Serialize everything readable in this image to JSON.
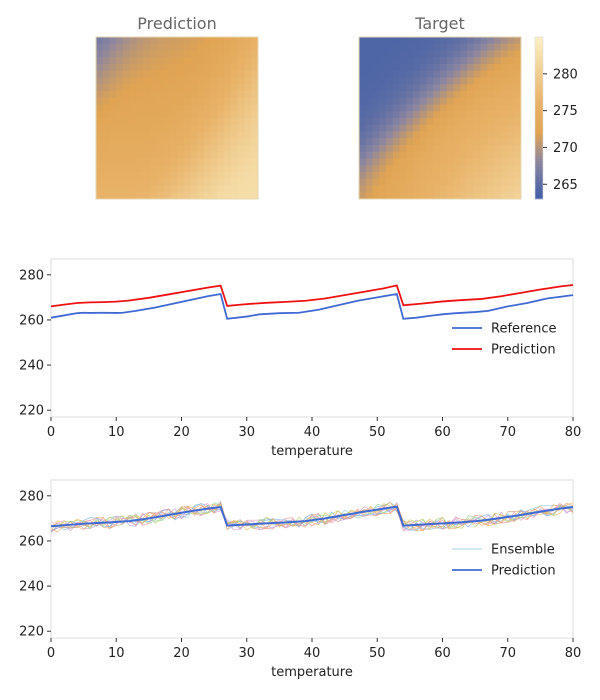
{
  "chart_data": [
    {
      "type": "heatmap",
      "title": "Prediction",
      "description_grid": "smooth field, low (~266) at top-left, high (~282) at bottom-right",
      "corner_values": {
        "top_left": 266,
        "top_right": 276,
        "bottom_left": 276,
        "bottom_right": 282
      },
      "colormap_stops": [
        {
          "value": 263,
          "color": "#3f5ea8"
        },
        {
          "value": 268,
          "color": "#8c86a0"
        },
        {
          "value": 272,
          "color": "#e0a453"
        },
        {
          "value": 276,
          "color": "#e8b268"
        },
        {
          "value": 285,
          "color": "#fbf0c4"
        }
      ]
    },
    {
      "type": "heatmap",
      "title": "Target",
      "corner_values": {
        "top_left": 263,
        "top_right": 271,
        "bottom_left": 271,
        "bottom_right": 281
      },
      "colorbar": {
        "range": [
          263,
          285
        ],
        "ticks": [
          265,
          270,
          275,
          280
        ]
      }
    },
    {
      "type": "line",
      "xlabel": "temperature",
      "ylabel": "",
      "xlim": [
        0,
        80
      ],
      "ylim": [
        217,
        287
      ],
      "xticks": [
        0,
        10,
        20,
        30,
        40,
        50,
        60,
        70,
        80
      ],
      "yticks": [
        220,
        240,
        260,
        280
      ],
      "legend_position": "center-right",
      "series": [
        {
          "name": "Reference",
          "color": "#4169d3",
          "x": [
            0,
            2,
            4,
            5,
            6,
            8,
            10,
            11,
            13,
            16,
            20,
            24,
            26,
            27,
            30,
            32,
            35,
            38,
            41,
            44,
            47,
            50,
            53,
            54,
            56,
            58,
            60,
            62,
            65,
            67,
            70,
            73,
            76,
            80
          ],
          "y": [
            261,
            262,
            263,
            263.2,
            263.1,
            263.2,
            263.1,
            263.2,
            264,
            265.5,
            268,
            270.5,
            271.5,
            260.5,
            261.5,
            262.5,
            263,
            263.2,
            264.5,
            266.5,
            268.5,
            270,
            271.5,
            260.5,
            261,
            261.8,
            262.5,
            263,
            263.5,
            264,
            266,
            267.5,
            269.5,
            271
          ]
        },
        {
          "name": "Prediction",
          "color": "#ee1111",
          "x": [
            0,
            2,
            4,
            6,
            8,
            10,
            12,
            15,
            18,
            21,
            24,
            26,
            27,
            30,
            33,
            36,
            39,
            42,
            45,
            48,
            51,
            53,
            54,
            57,
            60,
            63,
            66,
            69,
            72,
            75,
            78,
            80
          ],
          "y": [
            266,
            266.8,
            267.5,
            267.8,
            267.9,
            268.1,
            268.6,
            269.8,
            271.3,
            272.8,
            274.3,
            275.2,
            266.2,
            267,
            267.6,
            268,
            268.5,
            269.5,
            271,
            272.5,
            274,
            275.3,
            266.5,
            267.3,
            268.2,
            268.8,
            269.3,
            270.5,
            272,
            273.5,
            274.8,
            275.5
          ]
        }
      ]
    },
    {
      "type": "line",
      "xlabel": "temperature",
      "ylabel": "",
      "xlim": [
        0,
        80
      ],
      "ylim": [
        217,
        287
      ],
      "xticks": [
        0,
        10,
        20,
        30,
        40,
        50,
        60,
        70,
        80
      ],
      "yticks": [
        220,
        240,
        260,
        280
      ],
      "legend_position": "center-right",
      "ensemble_members": 10,
      "series": [
        {
          "name": "Ensemble",
          "color": "#8cc9d9",
          "style": "thin noisy lines around prediction (±3)"
        },
        {
          "name": "Prediction",
          "color": "#4169d3",
          "x": [
            0,
            3,
            6,
            9,
            12,
            15,
            18,
            21,
            24,
            26,
            27,
            30,
            33,
            36,
            39,
            42,
            45,
            48,
            51,
            53,
            54,
            57,
            60,
            63,
            66,
            69,
            72,
            75,
            78,
            80
          ],
          "y": [
            266.5,
            267.2,
            267.8,
            268.2,
            268.8,
            270,
            271.5,
            273,
            274.3,
            275,
            266.8,
            267.3,
            267.8,
            268.2,
            268.8,
            270,
            271.5,
            273,
            274.3,
            275.2,
            266.8,
            267.3,
            267.8,
            268.3,
            269,
            270.2,
            271.5,
            273,
            274.3,
            275
          ]
        }
      ]
    }
  ]
}
